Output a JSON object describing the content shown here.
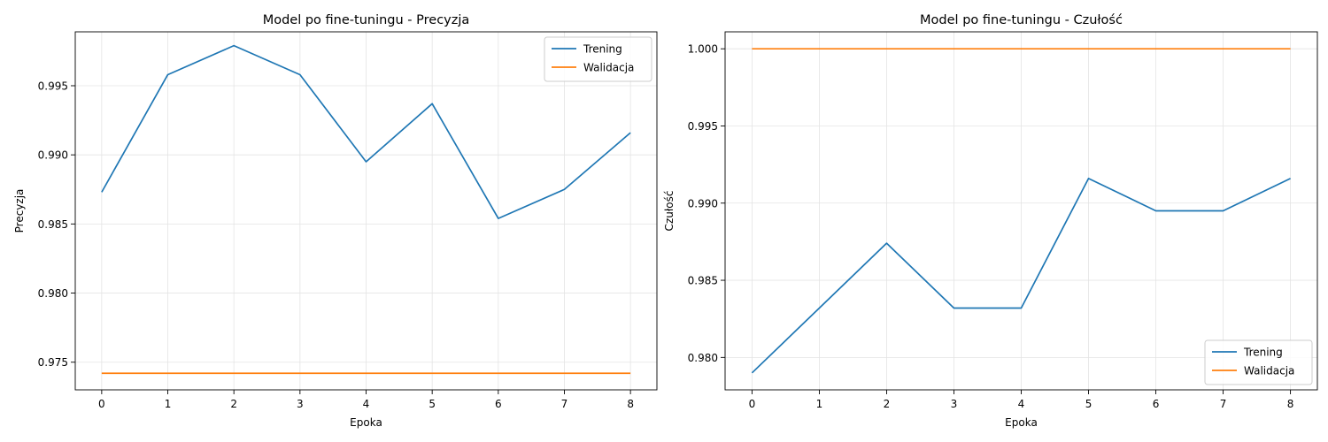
{
  "chart_data": [
    {
      "type": "line",
      "title": "Model po fine-tuningu - Precyzja",
      "xlabel": "Epoka",
      "ylabel": "Precyzja",
      "x": [
        0,
        1,
        2,
        3,
        4,
        5,
        6,
        7,
        8
      ],
      "xlim": [
        -0.4,
        8.4
      ],
      "ylim": [
        0.973,
        0.9989
      ],
      "xticks": [
        "0",
        "1",
        "2",
        "3",
        "4",
        "5",
        "6",
        "7",
        "8"
      ],
      "yticks": [
        "0.975",
        "0.980",
        "0.985",
        "0.990",
        "0.995"
      ],
      "ytick_values": [
        0.975,
        0.98,
        0.985,
        0.99,
        0.995
      ],
      "grid": true,
      "legend_position": "top-right",
      "series": [
        {
          "name": "Trening",
          "color": "#1f77b4",
          "values": [
            0.9873,
            0.9958,
            0.9979,
            0.9958,
            0.9895,
            0.9937,
            0.9854,
            0.9875,
            0.9916
          ]
        },
        {
          "name": "Walidacja",
          "color": "#ff7f0e",
          "values": [
            0.9742,
            0.9742,
            0.9742,
            0.9742,
            0.9742,
            0.9742,
            0.9742,
            0.9742,
            0.9742
          ]
        }
      ]
    },
    {
      "type": "line",
      "title": "Model po fine-tuningu - Czułość",
      "xlabel": "Epoka",
      "ylabel": "Czułość",
      "x": [
        0,
        1,
        2,
        3,
        4,
        5,
        6,
        7,
        8
      ],
      "xlim": [
        -0.4,
        8.4
      ],
      "ylim": [
        0.9779,
        1.0011
      ],
      "xticks": [
        "0",
        "1",
        "2",
        "3",
        "4",
        "5",
        "6",
        "7",
        "8"
      ],
      "yticks": [
        "0.980",
        "0.985",
        "0.990",
        "0.995",
        "1.000"
      ],
      "ytick_values": [
        0.98,
        0.985,
        0.99,
        0.995,
        1.0
      ],
      "grid": true,
      "legend_position": "bottom-right",
      "series": [
        {
          "name": "Trening",
          "color": "#1f77b4",
          "values": [
            0.979,
            0.9832,
            0.9874,
            0.9832,
            0.9832,
            0.9916,
            0.9895,
            0.9895,
            0.9916
          ]
        },
        {
          "name": "Walidacja",
          "color": "#ff7f0e",
          "values": [
            1.0,
            1.0,
            1.0,
            1.0,
            1.0,
            1.0,
            1.0,
            1.0,
            1.0
          ]
        }
      ]
    }
  ]
}
